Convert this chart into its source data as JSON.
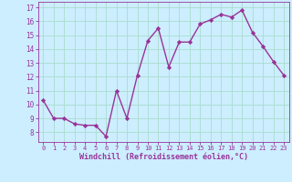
{
  "x": [
    0,
    1,
    2,
    3,
    4,
    5,
    6,
    7,
    8,
    9,
    10,
    11,
    12,
    13,
    14,
    15,
    16,
    17,
    18,
    19,
    20,
    21,
    22,
    23
  ],
  "y": [
    10.3,
    9.0,
    9.0,
    8.6,
    8.5,
    8.5,
    7.7,
    11.0,
    9.0,
    12.1,
    14.6,
    15.5,
    12.7,
    14.5,
    14.5,
    15.8,
    16.1,
    16.5,
    16.3,
    16.8,
    15.2,
    14.2,
    13.1,
    12.1
  ],
  "line_color": "#993399",
  "marker": "D",
  "marker_size": 2.2,
  "bg_color": "#cceeff",
  "grid_color": "#aaddcc",
  "xlabel": "Windchill (Refroidissement éolien,°C)",
  "xlabel_color": "#993399",
  "tick_color": "#993399",
  "ylim": [
    7.3,
    17.4
  ],
  "xlim": [
    -0.5,
    23.5
  ],
  "yticks": [
    8,
    9,
    10,
    11,
    12,
    13,
    14,
    15,
    16,
    17
  ],
  "xticks": [
    0,
    1,
    2,
    3,
    4,
    5,
    6,
    7,
    8,
    9,
    10,
    11,
    12,
    13,
    14,
    15,
    16,
    17,
    18,
    19,
    20,
    21,
    22,
    23
  ]
}
